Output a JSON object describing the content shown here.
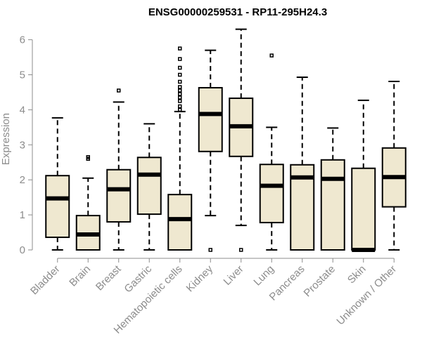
{
  "chart_data": {
    "type": "boxplot",
    "title": "ENSG00000259531 - RP11-295H24.3",
    "xlabel": "",
    "ylabel": "Expression",
    "ylim": [
      0,
      6.2
    ],
    "yticks": [
      "0",
      "1",
      "2",
      "3",
      "4",
      "5",
      "6"
    ],
    "box_fill": "#efe8d0",
    "categories": [
      "Bladder",
      "Brain",
      "Breast",
      "Gastric",
      "Hematopoietic cells",
      "Kidney",
      "Liver",
      "Lung",
      "Pancreas",
      "Prostate",
      "Skin",
      "Unknown / Other"
    ],
    "boxes": [
      {
        "min": 0.0,
        "q1": 0.36,
        "median": 1.47,
        "q3": 2.12,
        "max": 3.77,
        "outliers": []
      },
      {
        "min": 0.0,
        "q1": 0.0,
        "median": 0.44,
        "q3": 0.98,
        "max": 2.05,
        "outliers": [
          2.6,
          2.65
        ]
      },
      {
        "min": 0.0,
        "q1": 0.8,
        "median": 1.73,
        "q3": 2.29,
        "max": 4.22,
        "outliers": [
          4.55
        ]
      },
      {
        "min": 0.0,
        "q1": 1.02,
        "median": 2.15,
        "q3": 2.64,
        "max": 3.6,
        "outliers": []
      },
      {
        "min": 0.0,
        "q1": 0.0,
        "median": 0.88,
        "q3": 1.58,
        "max": 3.95,
        "outliers": [
          4.0,
          4.1,
          4.25,
          4.35,
          4.45,
          4.55,
          4.65,
          4.8,
          5.0,
          5.2,
          5.45,
          5.75
        ]
      },
      {
        "min": 0.98,
        "q1": 2.81,
        "median": 3.88,
        "q3": 4.63,
        "max": 5.7,
        "outliers": [
          0.0
        ]
      },
      {
        "min": 0.7,
        "q1": 2.67,
        "median": 3.53,
        "q3": 4.33,
        "max": 6.3,
        "outliers": [
          0.0
        ]
      },
      {
        "min": 0.0,
        "q1": 0.78,
        "median": 1.83,
        "q3": 2.44,
        "max": 3.5,
        "outliers": [
          5.55
        ]
      },
      {
        "min": 0.0,
        "q1": 0.0,
        "median": 2.07,
        "q3": 2.43,
        "max": 4.93,
        "outliers": []
      },
      {
        "min": 0.0,
        "q1": 0.0,
        "median": 2.03,
        "q3": 2.57,
        "max": 3.48,
        "outliers": []
      },
      {
        "min": 0.0,
        "q1": 0.0,
        "median": 0.0,
        "q3": 2.33,
        "max": 4.27,
        "outliers": []
      },
      {
        "min": 0.0,
        "q1": 1.23,
        "median": 2.08,
        "q3": 2.91,
        "max": 4.81,
        "outliers": []
      }
    ]
  }
}
